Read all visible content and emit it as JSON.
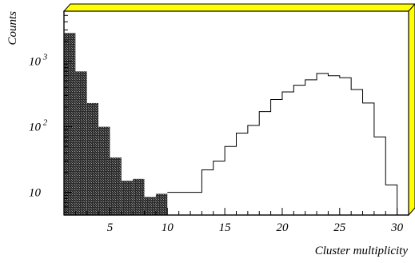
{
  "chart_data": {
    "type": "bar",
    "title": "",
    "xlabel": "Cluster multiplicity",
    "ylabel": "Counts",
    "x_ticks": [
      {
        "value": 5,
        "label": "5"
      },
      {
        "value": 10,
        "label": "10"
      },
      {
        "value": 15,
        "label": "15"
      },
      {
        "value": 20,
        "label": "20"
      },
      {
        "value": 25,
        "label": "25"
      },
      {
        "value": 30,
        "label": "30"
      }
    ],
    "y_ticks": [
      {
        "value": 10,
        "label": "10",
        "exp": ""
      },
      {
        "value": 100,
        "label": "10",
        "exp": "2"
      },
      {
        "value": 1000,
        "label": "10",
        "exp": "3"
      }
    ],
    "xlim": [
      1,
      31
    ],
    "ylim": [
      4.5,
      5800
    ],
    "y_scale": "log",
    "grid": false,
    "frame_colors": {
      "fill": "#ffff00",
      "edge": "#000000"
    },
    "series": [
      {
        "fill": "crosshatch",
        "bins": [
          {
            "x0": 1,
            "x1": 2,
            "value": 2700
          },
          {
            "x0": 2,
            "x1": 3,
            "value": 700
          },
          {
            "x0": 3,
            "x1": 4,
            "value": 230
          },
          {
            "x0": 4,
            "x1": 5,
            "value": 100
          },
          {
            "x0": 5,
            "x1": 6,
            "value": 34
          },
          {
            "x0": 6,
            "x1": 7,
            "value": 15
          },
          {
            "x0": 7,
            "x1": 8,
            "value": 16
          },
          {
            "x0": 8,
            "x1": 9,
            "value": 8.5
          },
          {
            "x0": 9,
            "x1": 10,
            "value": 9.5
          }
        ]
      },
      {
        "fill": "none",
        "bins": [
          {
            "x0": 10,
            "x1": 11,
            "value": 10
          },
          {
            "x0": 11,
            "x1": 12,
            "value": 10
          },
          {
            "x0": 12,
            "x1": 13,
            "value": 10
          },
          {
            "x0": 13,
            "x1": 14,
            "value": 22
          },
          {
            "x0": 14,
            "x1": 15,
            "value": 30
          },
          {
            "x0": 15,
            "x1": 16,
            "value": 50
          },
          {
            "x0": 16,
            "x1": 17,
            "value": 80
          },
          {
            "x0": 17,
            "x1": 18,
            "value": 105
          },
          {
            "x0": 18,
            "x1": 19,
            "value": 170
          },
          {
            "x0": 19,
            "x1": 20,
            "value": 260
          },
          {
            "x0": 20,
            "x1": 21,
            "value": 340
          },
          {
            "x0": 21,
            "x1": 22,
            "value": 430
          },
          {
            "x0": 22,
            "x1": 23,
            "value": 520
          },
          {
            "x0": 23,
            "x1": 24,
            "value": 650
          },
          {
            "x0": 24,
            "x1": 25,
            "value": 600
          },
          {
            "x0": 25,
            "x1": 26,
            "value": 560
          },
          {
            "x0": 26,
            "x1": 27,
            "value": 370
          },
          {
            "x0": 27,
            "x1": 28,
            "value": 230
          },
          {
            "x0": 28,
            "x1": 29,
            "value": 70
          },
          {
            "x0": 29,
            "x1": 30,
            "value": 13
          }
        ]
      }
    ]
  }
}
